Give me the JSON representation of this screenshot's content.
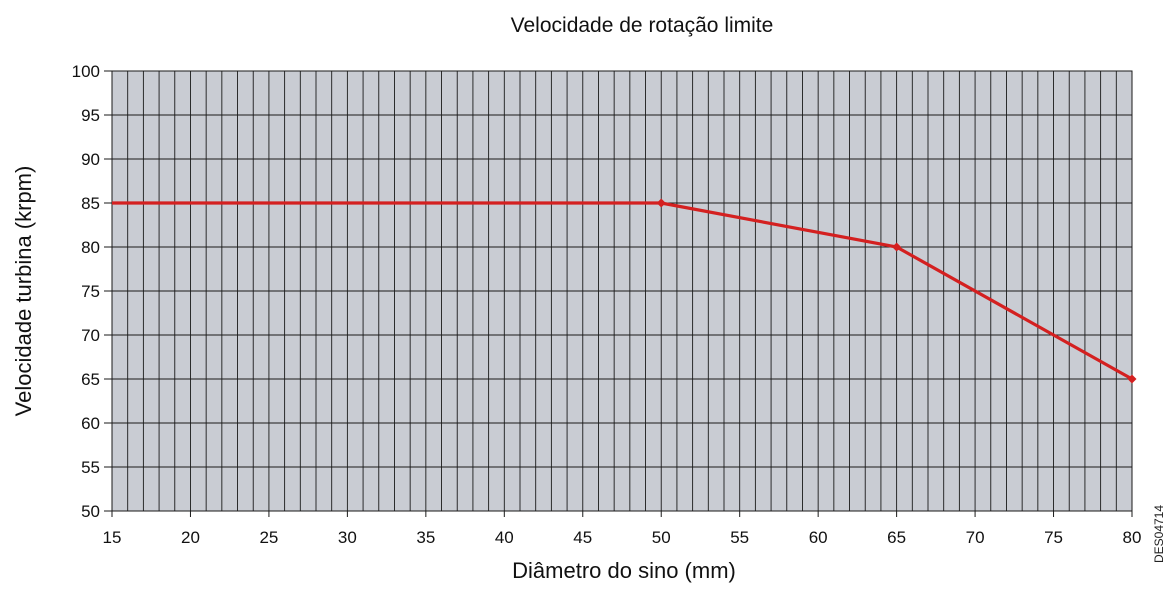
{
  "chart_data": {
    "type": "line",
    "title": "Velocidade de rotação limite",
    "xlabel": "Diâmetro do sino (mm)",
    "ylabel": "Velocidade turbina (krpm)",
    "xlim": [
      15,
      80
    ],
    "ylim": [
      50,
      100
    ],
    "x_ticks": [
      "15",
      "20",
      "25",
      "30",
      "35",
      "40",
      "45",
      "50",
      "55",
      "60",
      "65",
      "70",
      "75",
      "80"
    ],
    "y_ticks": [
      "50",
      "55",
      "60",
      "65",
      "70",
      "75",
      "80",
      "85",
      "90",
      "95",
      "100"
    ],
    "minor_x_step": 1,
    "grid": true,
    "legend": "none",
    "series": [
      {
        "x": [
          15,
          50,
          65,
          80
        ],
        "y": [
          85,
          85,
          80,
          65
        ],
        "markers": [
          50,
          65,
          80
        ]
      }
    ],
    "colors": {
      "plot_background": "#c9ccd3",
      "grid": "#1a1a1a",
      "line": "#d42020"
    },
    "code_label": "DES04714"
  }
}
